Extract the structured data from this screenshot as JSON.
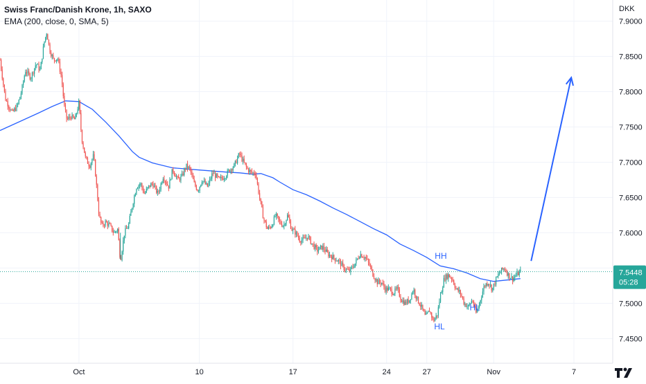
{
  "header": {
    "title": "Swiss Franc/Danish Krone, 1h, SAXO",
    "indicator": "EMA (200, close, 0, SMA, 5)"
  },
  "price_tag": {
    "price": "7.5448",
    "countdown": "05:28",
    "color": "#26a69a"
  },
  "colors": {
    "up": "#26a69a",
    "down": "#ef5350",
    "ema": "#2962ff",
    "annotation": "#2962ff",
    "axis_text": "#131722",
    "grid": "#f0f3fa"
  },
  "chart_data": {
    "type": "line",
    "title": "Swiss Franc/Danish Krone, 1h, SAXO",
    "subtitle": "EMA (200, close, 0, SMA, 5)",
    "ylabel": "DKK",
    "xlabel": "",
    "ylim": [
      7.415,
      7.93
    ],
    "y_ticks": [
      7.9,
      7.85,
      7.8,
      7.75,
      7.7,
      7.65,
      7.6,
      7.55,
      7.5,
      7.45
    ],
    "y_tick_labels": [
      "7.9000",
      "7.8500",
      "7.8000",
      "7.7500",
      "7.7000",
      "7.6500",
      "7.6000",
      "7.5500",
      "7.5000",
      "7.4500"
    ],
    "x_domain_days": [
      -5.9,
      39.9
    ],
    "x_ticks": [
      {
        "label": "Oct",
        "day": 0
      },
      {
        "label": "10",
        "day": 9
      },
      {
        "label": "17",
        "day": 16
      },
      {
        "label": "24",
        "day": 23
      },
      {
        "label": "27",
        "day": 26
      },
      {
        "label": "Nov",
        "day": 31
      },
      {
        "label": "7",
        "day": 37
      }
    ],
    "grid": true,
    "legend": "none",
    "series": [
      {
        "name": "Price",
        "type": "candlestick-path",
        "points": [
          [
            -5.9,
            7.845
          ],
          [
            -5.5,
            7.79
          ],
          [
            -5.0,
            7.77
          ],
          [
            -4.6,
            7.78
          ],
          [
            -4.3,
            7.8
          ],
          [
            -4.0,
            7.83
          ],
          [
            -3.6,
            7.82
          ],
          [
            -3.2,
            7.84
          ],
          [
            -2.9,
            7.83
          ],
          [
            -2.6,
            7.87
          ],
          [
            -2.4,
            7.885
          ],
          [
            -2.2,
            7.86
          ],
          [
            -1.9,
            7.845
          ],
          [
            -1.6,
            7.848
          ],
          [
            -1.3,
            7.82
          ],
          [
            -1.1,
            7.78
          ],
          [
            -0.9,
            7.76
          ],
          [
            -0.6,
            7.765
          ],
          [
            -0.3,
            7.76
          ],
          [
            0.0,
            7.785
          ],
          [
            0.2,
            7.735
          ],
          [
            0.5,
            7.705
          ],
          [
            0.8,
            7.695
          ],
          [
            1.1,
            7.71
          ],
          [
            1.3,
            7.67
          ],
          [
            1.5,
            7.625
          ],
          [
            1.7,
            7.61
          ],
          [
            2.0,
            7.615
          ],
          [
            2.3,
            7.61
          ],
          [
            2.6,
            7.6
          ],
          [
            2.9,
            7.605
          ],
          [
            3.1,
            7.56
          ],
          [
            3.4,
            7.6
          ],
          [
            3.7,
            7.61
          ],
          [
            4.0,
            7.64
          ],
          [
            4.3,
            7.665
          ],
          [
            4.6,
            7.67
          ],
          [
            4.9,
            7.655
          ],
          [
            5.2,
            7.665
          ],
          [
            5.5,
            7.67
          ],
          [
            5.9,
            7.655
          ],
          [
            6.3,
            7.68
          ],
          [
            6.7,
            7.665
          ],
          [
            7.0,
            7.69
          ],
          [
            7.4,
            7.675
          ],
          [
            7.7,
            7.68
          ],
          [
            8.0,
            7.695
          ],
          [
            8.3,
            7.69
          ],
          [
            8.6,
            7.67
          ],
          [
            8.9,
            7.66
          ],
          [
            9.2,
            7.675
          ],
          [
            9.6,
            7.665
          ],
          [
            10.0,
            7.685
          ],
          [
            10.5,
            7.675
          ],
          [
            10.9,
            7.68
          ],
          [
            11.3,
            7.69
          ],
          [
            11.6,
            7.695
          ],
          [
            12.0,
            7.712
          ],
          [
            12.3,
            7.7
          ],
          [
            12.6,
            7.69
          ],
          [
            12.9,
            7.685
          ],
          [
            13.2,
            7.685
          ],
          [
            13.5,
            7.65
          ],
          [
            13.8,
            7.62
          ],
          [
            14.1,
            7.605
          ],
          [
            14.4,
            7.61
          ],
          [
            14.7,
            7.625
          ],
          [
            15.0,
            7.615
          ],
          [
            15.3,
            7.61
          ],
          [
            15.6,
            7.625
          ],
          [
            15.9,
            7.605
          ],
          [
            16.2,
            7.6
          ],
          [
            16.5,
            7.59
          ],
          [
            16.8,
            7.59
          ],
          [
            17.1,
            7.595
          ],
          [
            17.4,
            7.585
          ],
          [
            17.8,
            7.575
          ],
          [
            18.2,
            7.58
          ],
          [
            18.6,
            7.57
          ],
          [
            19.0,
            7.565
          ],
          [
            19.4,
            7.56
          ],
          [
            19.8,
            7.55
          ],
          [
            20.2,
            7.545
          ],
          [
            20.6,
            7.555
          ],
          [
            21.0,
            7.57
          ],
          [
            21.4,
            7.565
          ],
          [
            21.7,
            7.555
          ],
          [
            22.0,
            7.54
          ],
          [
            22.3,
            7.53
          ],
          [
            22.6,
            7.53
          ],
          [
            22.9,
            7.52
          ],
          [
            23.2,
            7.52
          ],
          [
            23.5,
            7.515
          ],
          [
            23.8,
            7.52
          ],
          [
            24.1,
            7.505
          ],
          [
            24.4,
            7.5
          ],
          [
            24.7,
            7.505
          ],
          [
            25.0,
            7.52
          ],
          [
            25.3,
            7.505
          ],
          [
            25.6,
            7.495
          ],
          [
            25.9,
            7.48
          ],
          [
            26.2,
            7.49
          ],
          [
            26.5,
            7.475
          ],
          [
            26.8,
            7.485
          ],
          [
            27.0,
            7.51
          ],
          [
            27.3,
            7.535
          ],
          [
            27.6,
            7.54
          ],
          [
            27.9,
            7.535
          ],
          [
            28.2,
            7.52
          ],
          [
            28.5,
            7.515
          ],
          [
            28.8,
            7.5
          ],
          [
            29.1,
            7.495
          ],
          [
            29.4,
            7.505
          ],
          [
            29.7,
            7.485
          ],
          [
            30.0,
            7.505
          ],
          [
            30.3,
            7.525
          ],
          [
            30.6,
            7.53
          ],
          [
            30.9,
            7.52
          ],
          [
            31.2,
            7.535
          ],
          [
            31.5,
            7.545
          ],
          [
            31.8,
            7.55
          ],
          [
            32.1,
            7.54
          ],
          [
            32.4,
            7.535
          ],
          [
            32.7,
            7.54
          ],
          [
            33.0,
            7.5448
          ]
        ]
      },
      {
        "name": "EMA (200, close, 0, SMA, 5)",
        "type": "line",
        "points": [
          [
            -5.9,
            7.745
          ],
          [
            -4.5,
            7.757
          ],
          [
            -3.0,
            7.77
          ],
          [
            -2.0,
            7.779
          ],
          [
            -1.0,
            7.787
          ],
          [
            0.0,
            7.786
          ],
          [
            1.0,
            7.775
          ],
          [
            2.0,
            7.757
          ],
          [
            3.0,
            7.737
          ],
          [
            4.0,
            7.715
          ],
          [
            4.5,
            7.707
          ],
          [
            5.5,
            7.699
          ],
          [
            7.0,
            7.692
          ],
          [
            9.0,
            7.689
          ],
          [
            11.0,
            7.686
          ],
          [
            12.0,
            7.685
          ],
          [
            13.0,
            7.683
          ],
          [
            13.6,
            7.684
          ],
          [
            14.5,
            7.678
          ],
          [
            15.0,
            7.672
          ],
          [
            16.0,
            7.661
          ],
          [
            17.0,
            7.654
          ],
          [
            18.0,
            7.645
          ],
          [
            19.0,
            7.635
          ],
          [
            20.0,
            7.626
          ],
          [
            21.0,
            7.616
          ],
          [
            22.0,
            7.606
          ],
          [
            23.0,
            7.597
          ],
          [
            24.0,
            7.584
          ],
          [
            25.0,
            7.575
          ],
          [
            26.0,
            7.565
          ],
          [
            27.0,
            7.553
          ],
          [
            28.0,
            7.549
          ],
          [
            29.0,
            7.543
          ],
          [
            30.0,
            7.535
          ],
          [
            31.0,
            7.531
          ],
          [
            32.0,
            7.533
          ],
          [
            33.0,
            7.535
          ]
        ]
      }
    ],
    "annotations": [
      {
        "text": "HH",
        "day": 27.05,
        "value": 7.563
      },
      {
        "text": "HL",
        "day": 26.95,
        "value": 7.463
      },
      {
        "text": "HL",
        "day": 29.6,
        "value": 7.49
      },
      {
        "type": "arrow",
        "from": [
          33.8,
          7.56
        ],
        "to": [
          36.8,
          7.82
        ]
      }
    ],
    "last_price_line": 7.5448
  }
}
